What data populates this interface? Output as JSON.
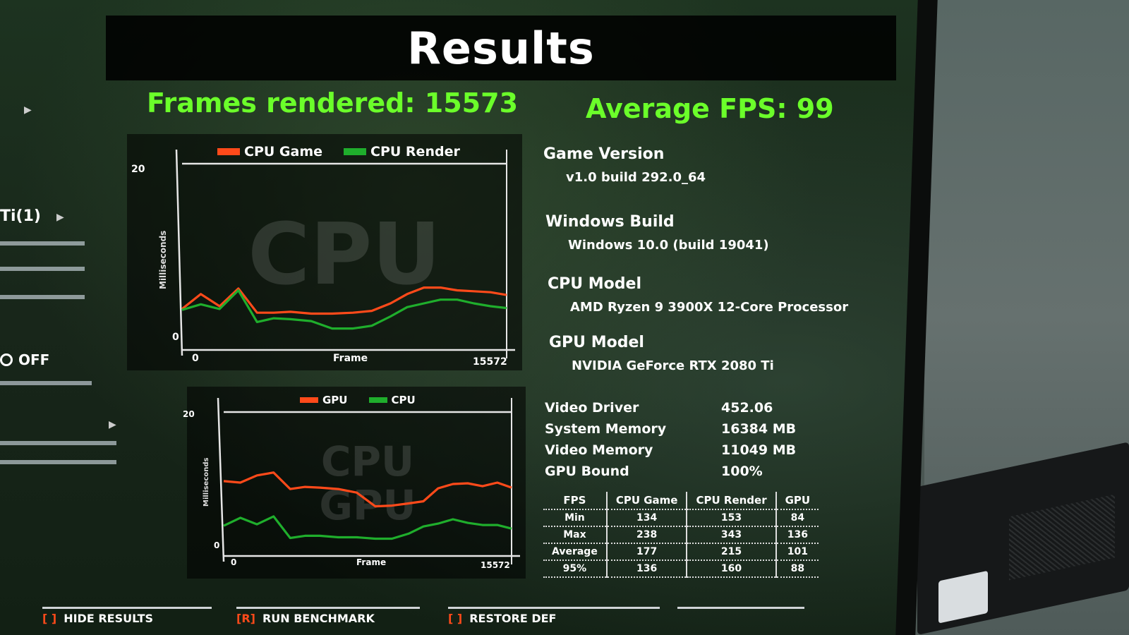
{
  "results": {
    "title": "Results",
    "frames_rendered": "Frames rendered: 15573",
    "average_fps": "Average FPS: 99"
  },
  "colors": {
    "accent_green": "#6bff2a",
    "series_orange": "#ff4a1a",
    "series_green": "#1fae2c"
  },
  "chart_data": [
    {
      "type": "line",
      "legend": [
        "CPU Game",
        "CPU Render"
      ],
      "xlabel": "Frame",
      "ylabel": "Milliseconds",
      "x_ticks": [
        "0",
        "15572"
      ],
      "y_ticks": [
        "0",
        "20"
      ],
      "watermark": "CPU",
      "ylim": [
        0,
        20
      ],
      "xlim": [
        0,
        15572
      ],
      "series": [
        {
          "name": "CPU Game",
          "color": "#ff4a1a",
          "x": [
            0,
            900,
            1800,
            2700,
            3600,
            4400,
            5200,
            6200,
            7200,
            8200,
            9100,
            10000,
            10800,
            11600,
            12400,
            13200,
            14000,
            14800,
            15572
          ],
          "values": [
            4.4,
            6.0,
            4.7,
            6.6,
            4.0,
            4.0,
            4.1,
            3.9,
            3.9,
            4.0,
            4.2,
            5.0,
            6.0,
            6.7,
            6.7,
            6.4,
            6.3,
            6.2,
            5.9
          ]
        },
        {
          "name": "CPU Render",
          "color": "#1fae2c",
          "x": [
            0,
            900,
            1800,
            2700,
            3600,
            4400,
            5200,
            6200,
            7200,
            8200,
            9100,
            10000,
            10800,
            11600,
            12400,
            13200,
            14000,
            14800,
            15572
          ],
          "values": [
            4.3,
            4.9,
            4.4,
            6.4,
            3.0,
            3.4,
            3.3,
            3.1,
            2.3,
            2.3,
            2.6,
            3.6,
            4.6,
            5.0,
            5.4,
            5.4,
            5.0,
            4.7,
            4.5
          ]
        }
      ]
    },
    {
      "type": "line",
      "legend": [
        "GPU",
        "CPU"
      ],
      "xlabel": "Frame",
      "ylabel": "Milliseconds",
      "x_ticks": [
        "0",
        "15572"
      ],
      "y_ticks": [
        "0",
        "20"
      ],
      "watermark_lines": [
        "CPU",
        "GPU"
      ],
      "ylim": [
        0,
        20
      ],
      "xlim": [
        0,
        15572
      ],
      "series": [
        {
          "name": "GPU",
          "color": "#ff4a1a",
          "x": [
            0,
            900,
            1800,
            2700,
            3600,
            4400,
            5200,
            6200,
            7200,
            8200,
            9100,
            10000,
            10800,
            11600,
            12400,
            13200,
            14000,
            14800,
            15572
          ],
          "values": [
            10.4,
            10.2,
            11.2,
            11.6,
            9.3,
            9.6,
            9.5,
            9.3,
            8.8,
            6.9,
            7.0,
            7.3,
            7.6,
            9.4,
            10.0,
            10.1,
            9.7,
            10.2,
            9.5
          ]
        },
        {
          "name": "CPU",
          "color": "#1fae2c",
          "x": [
            0,
            900,
            1800,
            2700,
            3600,
            4400,
            5200,
            6200,
            7200,
            8200,
            9100,
            10000,
            10800,
            11600,
            12400,
            13200,
            14000,
            14800,
            15572
          ],
          "values": [
            4.2,
            5.3,
            4.4,
            5.5,
            2.5,
            2.8,
            2.8,
            2.6,
            2.6,
            2.4,
            2.4,
            3.1,
            4.1,
            4.5,
            5.1,
            4.6,
            4.3,
            4.3,
            3.8
          ]
        }
      ]
    }
  ],
  "info": {
    "game_version_label": "Game Version",
    "game_version": "v1.0 build 292.0_64",
    "windows_build_label": "Windows Build",
    "windows_build": "Windows 10.0 (build 19041)",
    "cpu_model_label": "CPU Model",
    "cpu_model": "AMD Ryzen 9 3900X 12-Core Processor",
    "gpu_model_label": "GPU Model",
    "gpu_model": "NVIDIA GeForce RTX 2080 Ti",
    "video_driver_label": "Video Driver",
    "video_driver": "452.06",
    "system_memory_label": "System Memory",
    "system_memory": "16384 MB",
    "video_memory_label": "Video Memory",
    "video_memory": "11049 MB",
    "gpu_bound_label": "GPU Bound",
    "gpu_bound": "100%"
  },
  "fps_table": {
    "headers": [
      "FPS",
      "CPU Game",
      "CPU Render",
      "GPU"
    ],
    "rows": [
      [
        "Min",
        "134",
        "153",
        "84"
      ],
      [
        "Max",
        "238",
        "343",
        "136"
      ],
      [
        "Average",
        "177",
        "215",
        "101"
      ],
      [
        "95%",
        "136",
        "160",
        "88"
      ]
    ]
  },
  "left_menu": {
    "gpu_partial": "Ti(1)",
    "off_label": "OFF"
  },
  "bottom_actions": [
    {
      "key": "[ ]",
      "label": "HIDE RESULTS"
    },
    {
      "key": "[R]",
      "label": "RUN BENCHMARK"
    },
    {
      "key": "[ ]",
      "label": "RESTORE DEF"
    }
  ]
}
